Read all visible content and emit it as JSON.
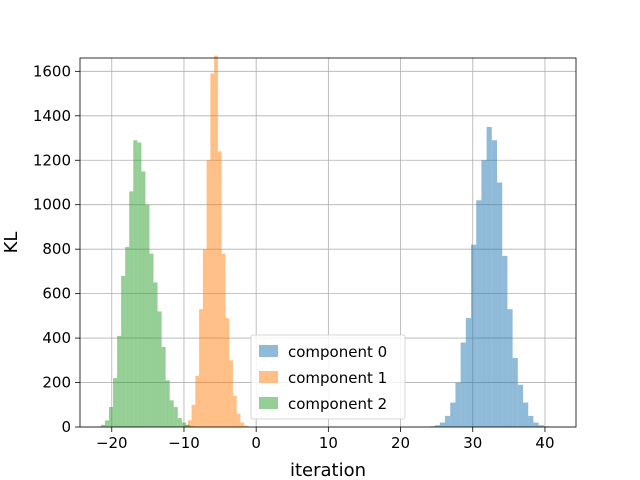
{
  "chart_data": {
    "type": "histogram",
    "title": "",
    "xlabel": "iteration",
    "ylabel": "KL",
    "xlim": [
      -24.4,
      44.3
    ],
    "ylim": [
      0,
      1660
    ],
    "xticks": [
      -20,
      -10,
      0,
      10,
      20,
      30,
      40
    ],
    "yticks": [
      0,
      200,
      400,
      600,
      800,
      1000,
      1200,
      1400,
      1600
    ],
    "grid": true,
    "legend_position": "lower-center",
    "series": [
      {
        "name": "component 0",
        "color": "#1f77b4",
        "alpha": 0.5,
        "bin_edges": [
          24.0,
          24.72,
          25.44,
          26.16,
          26.88,
          27.6,
          28.32,
          29.04,
          29.76,
          30.48,
          31.2,
          31.92,
          32.64,
          33.36,
          34.08,
          34.8,
          35.52,
          36.24,
          36.96,
          37.68,
          38.4,
          39.12,
          39.84,
          40.56,
          41.28,
          42.0
        ],
        "counts": [
          3,
          8,
          20,
          50,
          110,
          200,
          380,
          490,
          820,
          1020,
          1200,
          1350,
          1290,
          1100,
          770,
          530,
          310,
          190,
          110,
          50,
          20,
          8,
          3,
          1,
          0
        ]
      },
      {
        "name": "component 1",
        "color": "#ff7f0e",
        "alpha": 0.5,
        "bin_edges": [
          -10.5,
          -9.98,
          -9.46,
          -8.94,
          -8.42,
          -7.9,
          -7.38,
          -6.86,
          -6.34,
          -5.82,
          -5.3,
          -4.78,
          -4.26,
          -3.74,
          -3.22,
          -2.7,
          -2.18,
          -1.66,
          -1.14,
          -0.62,
          -0.1
        ],
        "counts": [
          2,
          8,
          30,
          100,
          230,
          530,
          800,
          1200,
          1590,
          1670,
          1240,
          780,
          490,
          300,
          140,
          60,
          20,
          6,
          2,
          0
        ]
      },
      {
        "name": "component 2",
        "color": "#2ca02c",
        "alpha": 0.5,
        "bin_edges": [
          -21.5,
          -20.94,
          -20.38,
          -19.82,
          -19.26,
          -18.7,
          -18.14,
          -17.58,
          -17.02,
          -16.46,
          -15.9,
          -15.34,
          -14.78,
          -14.22,
          -13.66,
          -13.1,
          -12.54,
          -11.98,
          -11.42,
          -10.86,
          -10.3,
          -9.74,
          -9.18,
          -8.62,
          -8.06,
          -7.5
        ],
        "counts": [
          10,
          30,
          90,
          220,
          410,
          680,
          810,
          1060,
          1290,
          1280,
          1150,
          1000,
          780,
          650,
          520,
          360,
          210,
          120,
          90,
          40,
          20,
          10,
          3,
          1,
          0
        ]
      }
    ]
  }
}
